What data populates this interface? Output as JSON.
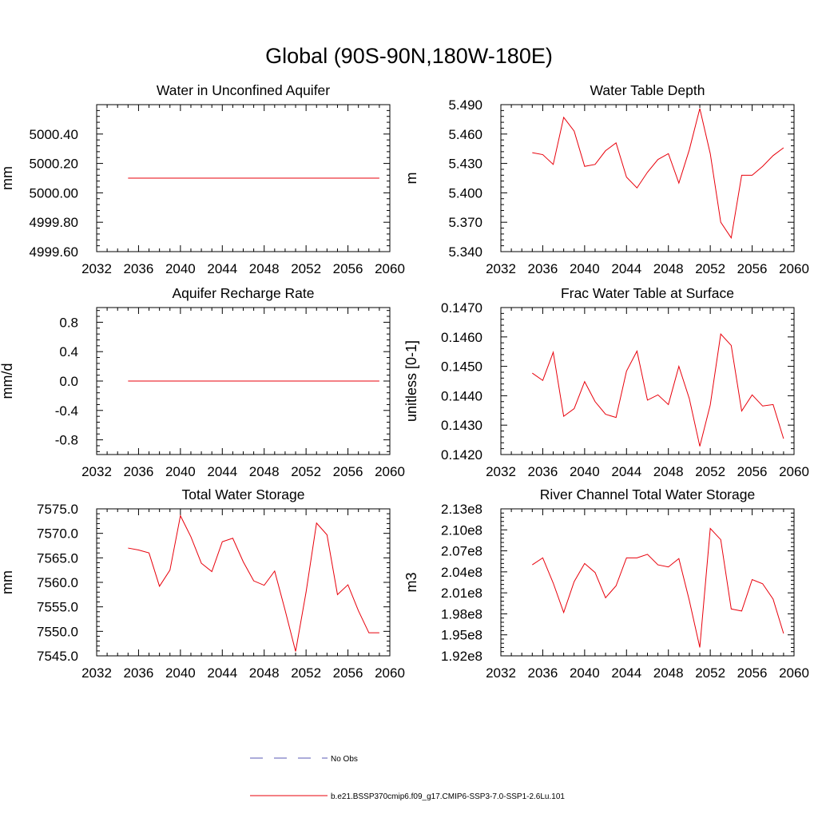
{
  "figure": {
    "title": "Global (90S-90N,180W-180E)"
  },
  "legend": {
    "entries": [
      {
        "label": "No Obs",
        "color": "#5a5ab4",
        "style": "dashed"
      },
      {
        "label": "b.e21.BSSP370cmip6.f09_g17.CMIP6-SSP3-7.0-SSP1-2.6Lu.101",
        "color": "#e8000b",
        "style": "solid"
      }
    ]
  },
  "colors": {
    "series": "#e8000b",
    "axis": "#000000"
  },
  "chart_data": [
    {
      "type": "line",
      "title": "Water in Unconfined Aquifer",
      "ylabel": "mm",
      "xlim": [
        2032,
        2060
      ],
      "ylim": [
        4999.6,
        5000.6
      ],
      "xticks": [
        "2032",
        "2036",
        "2040",
        "2044",
        "2048",
        "2052",
        "2056",
        "2060"
      ],
      "yticks": [
        "4999.60",
        "4999.80",
        "5000.00",
        "5000.20",
        "5000.40"
      ],
      "x": [
        2035,
        2036,
        2037,
        2038,
        2039,
        2040,
        2041,
        2042,
        2043,
        2044,
        2045,
        2046,
        2047,
        2048,
        2049,
        2050,
        2051,
        2052,
        2053,
        2054,
        2055,
        2056,
        2057,
        2058,
        2059
      ],
      "series": [
        {
          "values": [
            5000.1,
            5000.1,
            5000.1,
            5000.1,
            5000.1,
            5000.1,
            5000.1,
            5000.1,
            5000.1,
            5000.1,
            5000.1,
            5000.1,
            5000.1,
            5000.1,
            5000.1,
            5000.1,
            5000.1,
            5000.1,
            5000.1,
            5000.1,
            5000.1,
            5000.1,
            5000.1,
            5000.1,
            5000.1
          ]
        }
      ]
    },
    {
      "type": "line",
      "title": "Water Table Depth",
      "ylabel": "m",
      "xlim": [
        2032,
        2060
      ],
      "ylim": [
        5.34,
        5.49
      ],
      "xticks": [
        "2032",
        "2036",
        "2040",
        "2044",
        "2048",
        "2052",
        "2056",
        "2060"
      ],
      "yticks": [
        "5.340",
        "5.370",
        "5.400",
        "5.430",
        "5.460",
        "5.490"
      ],
      "x": [
        2035,
        2036,
        2037,
        2038,
        2039,
        2040,
        2041,
        2042,
        2043,
        2044,
        2045,
        2046,
        2047,
        2048,
        2049,
        2050,
        2051,
        2052,
        2053,
        2054,
        2055,
        2056,
        2057,
        2058,
        2059
      ],
      "series": [
        {
          "values": [
            5.441,
            5.439,
            5.429,
            5.477,
            5.463,
            5.427,
            5.429,
            5.443,
            5.451,
            5.416,
            5.405,
            5.421,
            5.434,
            5.44,
            5.41,
            5.444,
            5.486,
            5.44,
            5.37,
            5.354,
            5.418,
            5.418,
            5.427,
            5.438,
            5.446
          ]
        }
      ]
    },
    {
      "type": "line",
      "title": "Aquifer Recharge Rate",
      "ylabel": "mm/d",
      "xlim": [
        2032,
        2060
      ],
      "ylim": [
        -1.0,
        1.0
      ],
      "xticks": [
        "2032",
        "2036",
        "2040",
        "2044",
        "2048",
        "2052",
        "2056",
        "2060"
      ],
      "yticks": [
        "-0.8",
        "-0.4",
        "0.0",
        "0.4",
        "0.8"
      ],
      "x": [
        2035,
        2036,
        2037,
        2038,
        2039,
        2040,
        2041,
        2042,
        2043,
        2044,
        2045,
        2046,
        2047,
        2048,
        2049,
        2050,
        2051,
        2052,
        2053,
        2054,
        2055,
        2056,
        2057,
        2058,
        2059
      ],
      "series": [
        {
          "values": [
            0,
            0,
            0,
            0,
            0,
            0,
            0,
            0,
            0,
            0,
            0,
            0,
            0,
            0,
            0,
            0,
            0,
            0,
            0,
            0,
            0,
            0,
            0,
            0,
            0
          ]
        }
      ]
    },
    {
      "type": "line",
      "title": "Frac Water Table at Surface",
      "ylabel": "unitless [0-1]",
      "xlim": [
        2032,
        2060
      ],
      "ylim": [
        0.142,
        0.147
      ],
      "xticks": [
        "2032",
        "2036",
        "2040",
        "2044",
        "2048",
        "2052",
        "2056",
        "2060"
      ],
      "yticks": [
        "0.1420",
        "0.1430",
        "0.1440",
        "0.1450",
        "0.1460",
        "0.1470"
      ],
      "x": [
        2035,
        2036,
        2037,
        2038,
        2039,
        2040,
        2041,
        2042,
        2043,
        2044,
        2045,
        2046,
        2047,
        2048,
        2049,
        2050,
        2051,
        2052,
        2053,
        2054,
        2055,
        2056,
        2057,
        2058,
        2059
      ],
      "series": [
        {
          "values": [
            0.14477,
            0.14452,
            0.14548,
            0.1433,
            0.14356,
            0.14448,
            0.1438,
            0.14337,
            0.14326,
            0.14484,
            0.14552,
            0.14385,
            0.14403,
            0.1437,
            0.145,
            0.1439,
            0.14228,
            0.14369,
            0.1461,
            0.14571,
            0.14348,
            0.14403,
            0.14365,
            0.1437,
            0.14254
          ]
        }
      ]
    },
    {
      "type": "line",
      "title": "Total Water Storage",
      "ylabel": "mm",
      "xlim": [
        2032,
        2060
      ],
      "ylim": [
        7545.0,
        7575.0
      ],
      "xticks": [
        "2032",
        "2036",
        "2040",
        "2044",
        "2048",
        "2052",
        "2056",
        "2060"
      ],
      "yticks": [
        "7545.0",
        "7550.0",
        "7555.0",
        "7560.0",
        "7565.0",
        "7570.0",
        "7575.0"
      ],
      "x": [
        2035,
        2036,
        2037,
        2038,
        2039,
        2040,
        2041,
        2042,
        2043,
        2044,
        2045,
        2046,
        2047,
        2048,
        2049,
        2050,
        2051,
        2052,
        2053,
        2054,
        2055,
        2056,
        2057,
        2058,
        2059
      ],
      "series": [
        {
          "values": [
            7567.0,
            7566.6,
            7566.0,
            7559.2,
            7562.5,
            7573.6,
            7569.3,
            7563.9,
            7562.2,
            7568.3,
            7569.0,
            7564.2,
            7560.3,
            7559.4,
            7562.3,
            7554.3,
            7545.9,
            7558.0,
            7572.1,
            7569.7,
            7557.5,
            7559.5,
            7554.2,
            7549.7,
            7549.7
          ]
        }
      ]
    },
    {
      "type": "line",
      "title": "River Channel Total Water Storage",
      "ylabel": "m3",
      "xlim": [
        2032,
        2060
      ],
      "ylim": [
        192000000,
        213000000
      ],
      "xticks": [
        "2032",
        "2036",
        "2040",
        "2044",
        "2048",
        "2052",
        "2056",
        "2060"
      ],
      "yticks": [
        "1.92e8",
        "1.95e8",
        "1.98e8",
        "2.01e8",
        "2.04e8",
        "2.07e8",
        "2.10e8",
        "2.13e8"
      ],
      "x": [
        2035,
        2036,
        2037,
        2038,
        2039,
        2040,
        2041,
        2042,
        2043,
        2044,
        2045,
        2046,
        2047,
        2048,
        2049,
        2050,
        2051,
        2052,
        2053,
        2054,
        2055,
        2056,
        2057,
        2058,
        2059
      ],
      "series": [
        {
          "values": [
            205000000,
            206000000,
            202400000,
            198200000,
            202600000,
            205200000,
            203900000,
            200300000,
            202000000,
            206000000,
            206000000,
            206500000,
            205000000,
            204700000,
            205900000,
            199900000,
            193200000,
            210200000,
            208600000,
            198700000,
            198400000,
            202900000,
            202300000,
            200100000,
            195200000
          ]
        }
      ]
    }
  ]
}
